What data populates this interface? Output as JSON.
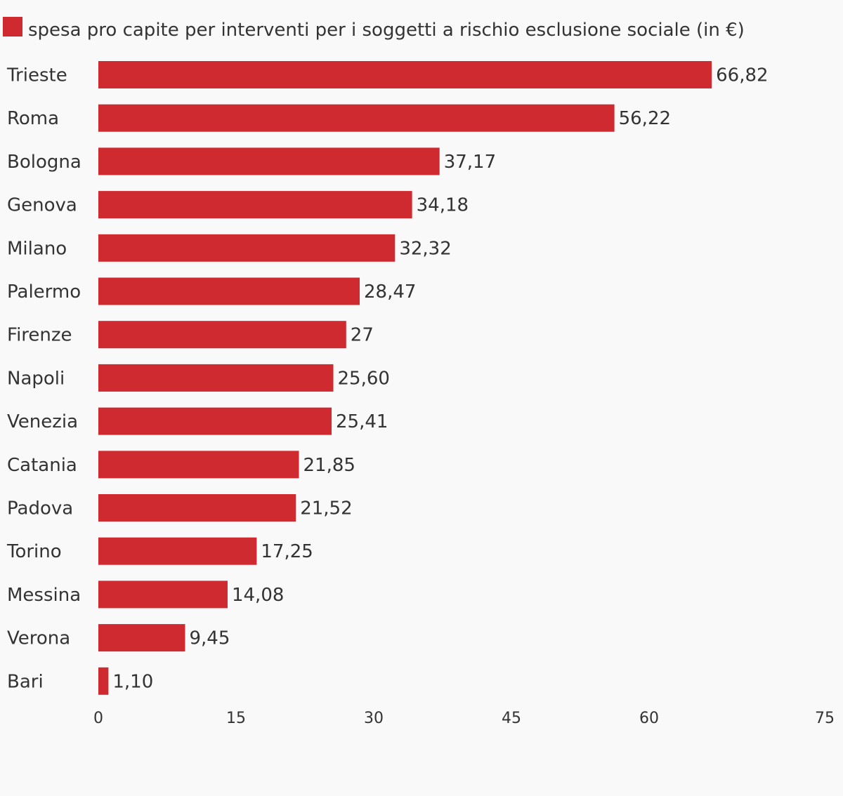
{
  "chart_data": {
    "type": "bar",
    "orientation": "horizontal",
    "legend": {
      "label": "spesa pro capite per interventi per i soggetti a rischio esclusione sociale (in €)",
      "color": "#cf2a30",
      "placement": "top-left"
    },
    "categories": [
      "Trieste",
      "Roma",
      "Bologna",
      "Genova",
      "Milano",
      "Palermo",
      "Firenze",
      "Napoli",
      "Venezia",
      "Catania",
      "Padova",
      "Torino",
      "Messina",
      "Verona",
      "Bari"
    ],
    "values": [
      66.82,
      56.22,
      37.17,
      34.18,
      32.32,
      28.47,
      27,
      25.6,
      25.41,
      21.85,
      21.52,
      17.25,
      14.08,
      9.45,
      1.1
    ],
    "data_labels": [
      "66,82",
      "56,22",
      "37,17",
      "34,18",
      "32,32",
      "28,47",
      "27",
      "25,60",
      "25,41",
      "21,85",
      "21,52",
      "17,25",
      "14,08",
      "9,45",
      "1,10"
    ],
    "x_ticks": [
      0,
      15,
      30,
      45,
      60,
      75
    ],
    "xlim": [
      0,
      75
    ],
    "grid": false,
    "bar_color": "#cf2a30"
  }
}
